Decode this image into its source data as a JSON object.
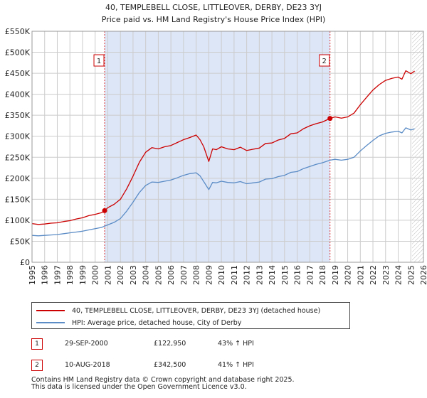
{
  "chart_data": {
    "type": "line",
    "title": "40, TEMPLEBELL CLOSE, LITTLEOVER, DERBY, DE23 3YJ",
    "subtitle": "Price paid vs. HM Land Registry's House Price Index (HPI)",
    "xlim": [
      1995,
      2026
    ],
    "ylim": [
      0,
      550000
    ],
    "x_ticks": [
      "1995",
      "1996",
      "1997",
      "1998",
      "1999",
      "2000",
      "2001",
      "2002",
      "2003",
      "2004",
      "2005",
      "2006",
      "2007",
      "2008",
      "2009",
      "2010",
      "2011",
      "2012",
      "2013",
      "2014",
      "2015",
      "2016",
      "2017",
      "2018",
      "2019",
      "2020",
      "2021",
      "2022",
      "2023",
      "2024",
      "2025",
      "2026"
    ],
    "y_ticks": [
      {
        "value": 0,
        "label": "£0"
      },
      {
        "value": 50000,
        "label": "£50K"
      },
      {
        "value": 100000,
        "label": "£100K"
      },
      {
        "value": 150000,
        "label": "£150K"
      },
      {
        "value": 200000,
        "label": "£200K"
      },
      {
        "value": 250000,
        "label": "£250K"
      },
      {
        "value": 300000,
        "label": "£300K"
      },
      {
        "value": 350000,
        "label": "£350K"
      },
      {
        "value": 400000,
        "label": "£400K"
      },
      {
        "value": 450000,
        "label": "£450K"
      },
      {
        "value": 500000,
        "label": "£500K"
      },
      {
        "value": 550000,
        "label": "£550K"
      }
    ],
    "shaded_period": [
      2000.75,
      2018.6
    ],
    "future_hatch_from": 2025.1,
    "series": [
      {
        "name": "40, TEMPLEBELL CLOSE, LITTLEOVER, DERBY, DE23 3YJ (detached house)",
        "color": "#cc0000",
        "x": [
          1995,
          1995.5,
          1996,
          1996.5,
          1997,
          1997.5,
          1998,
          1998.5,
          1999,
          1999.5,
          2000,
          2000.5,
          2000.75,
          2001,
          2001.5,
          2002,
          2002.5,
          2003,
          2003.5,
          2004,
          2004.5,
          2005,
          2005.5,
          2006,
          2006.5,
          2007,
          2007.5,
          2008,
          2008.3,
          2008.6,
          2009,
          2009.3,
          2009.6,
          2010,
          2010.5,
          2011,
          2011.5,
          2012,
          2012.5,
          2013,
          2013.5,
          2014,
          2014.5,
          2015,
          2015.5,
          2016,
          2016.5,
          2017,
          2017.5,
          2018,
          2018.6,
          2019,
          2019.5,
          2020,
          2020.5,
          2021,
          2021.5,
          2022,
          2022.5,
          2023,
          2023.5,
          2024,
          2024.3,
          2024.6,
          2025,
          2025.3
        ],
        "y": [
          92000,
          90000,
          91000,
          93000,
          94000,
          97000,
          99000,
          103000,
          106000,
          111000,
          114000,
          118000,
          122950,
          130000,
          138000,
          150000,
          175000,
          205000,
          238000,
          262000,
          273000,
          270000,
          275000,
          278000,
          285000,
          292000,
          297000,
          303000,
          292000,
          275000,
          240000,
          270000,
          268000,
          275000,
          270000,
          268000,
          274000,
          266000,
          269000,
          272000,
          283000,
          284000,
          291000,
          295000,
          306000,
          308000,
          318000,
          325000,
          330000,
          334000,
          342500,
          346000,
          343000,
          346000,
          355000,
          375000,
          393000,
          410000,
          423000,
          433000,
          438000,
          441000,
          436000,
          456000,
          449000,
          455000
        ]
      },
      {
        "name": "HPI: Average price, detached house, City of Derby",
        "color": "#5b8cc6",
        "x": [
          1995,
          1995.5,
          1996,
          1996.5,
          1997,
          1997.5,
          1998,
          1998.5,
          1999,
          1999.5,
          2000,
          2000.5,
          2000.75,
          2001,
          2001.5,
          2002,
          2002.5,
          2003,
          2003.5,
          2004,
          2004.5,
          2005,
          2005.5,
          2006,
          2006.5,
          2007,
          2007.5,
          2008,
          2008.3,
          2008.6,
          2009,
          2009.3,
          2009.6,
          2010,
          2010.5,
          2011,
          2011.5,
          2012,
          2012.5,
          2013,
          2013.5,
          2014,
          2014.5,
          2015,
          2015.5,
          2016,
          2016.5,
          2017,
          2017.5,
          2018,
          2018.6,
          2019,
          2019.5,
          2020,
          2020.5,
          2021,
          2021.5,
          2022,
          2022.5,
          2023,
          2023.5,
          2024,
          2024.3,
          2024.6,
          2025,
          2025.3
        ],
        "y": [
          64000,
          63000,
          64000,
          65000,
          66000,
          68000,
          70000,
          72000,
          74000,
          77000,
          80000,
          83000,
          86000,
          89000,
          95000,
          104000,
          122000,
          143000,
          166000,
          183000,
          191000,
          190000,
          193000,
          196000,
          201000,
          207000,
          211000,
          213000,
          206000,
          192000,
          173000,
          190000,
          189000,
          193000,
          190000,
          189000,
          192000,
          187000,
          189000,
          191000,
          198000,
          199000,
          204000,
          207000,
          214000,
          216000,
          223000,
          228000,
          233000,
          237000,
          243000,
          245000,
          243000,
          245000,
          250000,
          265000,
          278000,
          290000,
          301000,
          307000,
          310000,
          312000,
          308000,
          320000,
          315000,
          318000
        ]
      }
    ],
    "annotations": [
      {
        "label": "1",
        "x": 2000.75,
        "y": 122950
      },
      {
        "label": "2",
        "x": 2018.6,
        "y": 342500
      }
    ]
  },
  "legend": {
    "entries": [
      {
        "label": "40, TEMPLEBELL CLOSE, LITTLEOVER, DERBY, DE23 3YJ (detached house)",
        "color": "#cc0000"
      },
      {
        "label": "HPI: Average price, detached house, City of Derby",
        "color": "#5b8cc6"
      }
    ]
  },
  "sales": [
    {
      "num": "1",
      "date": "29-SEP-2000",
      "price": "£122,950",
      "hpi": "43% ↑ HPI"
    },
    {
      "num": "2",
      "date": "10-AUG-2018",
      "price": "£342,500",
      "hpi": "41% ↑ HPI"
    }
  ],
  "footer": {
    "line1": "Contains HM Land Registry data © Crown copyright and database right 2025.",
    "line2": "This data is licensed under the Open Government Licence v3.0."
  }
}
